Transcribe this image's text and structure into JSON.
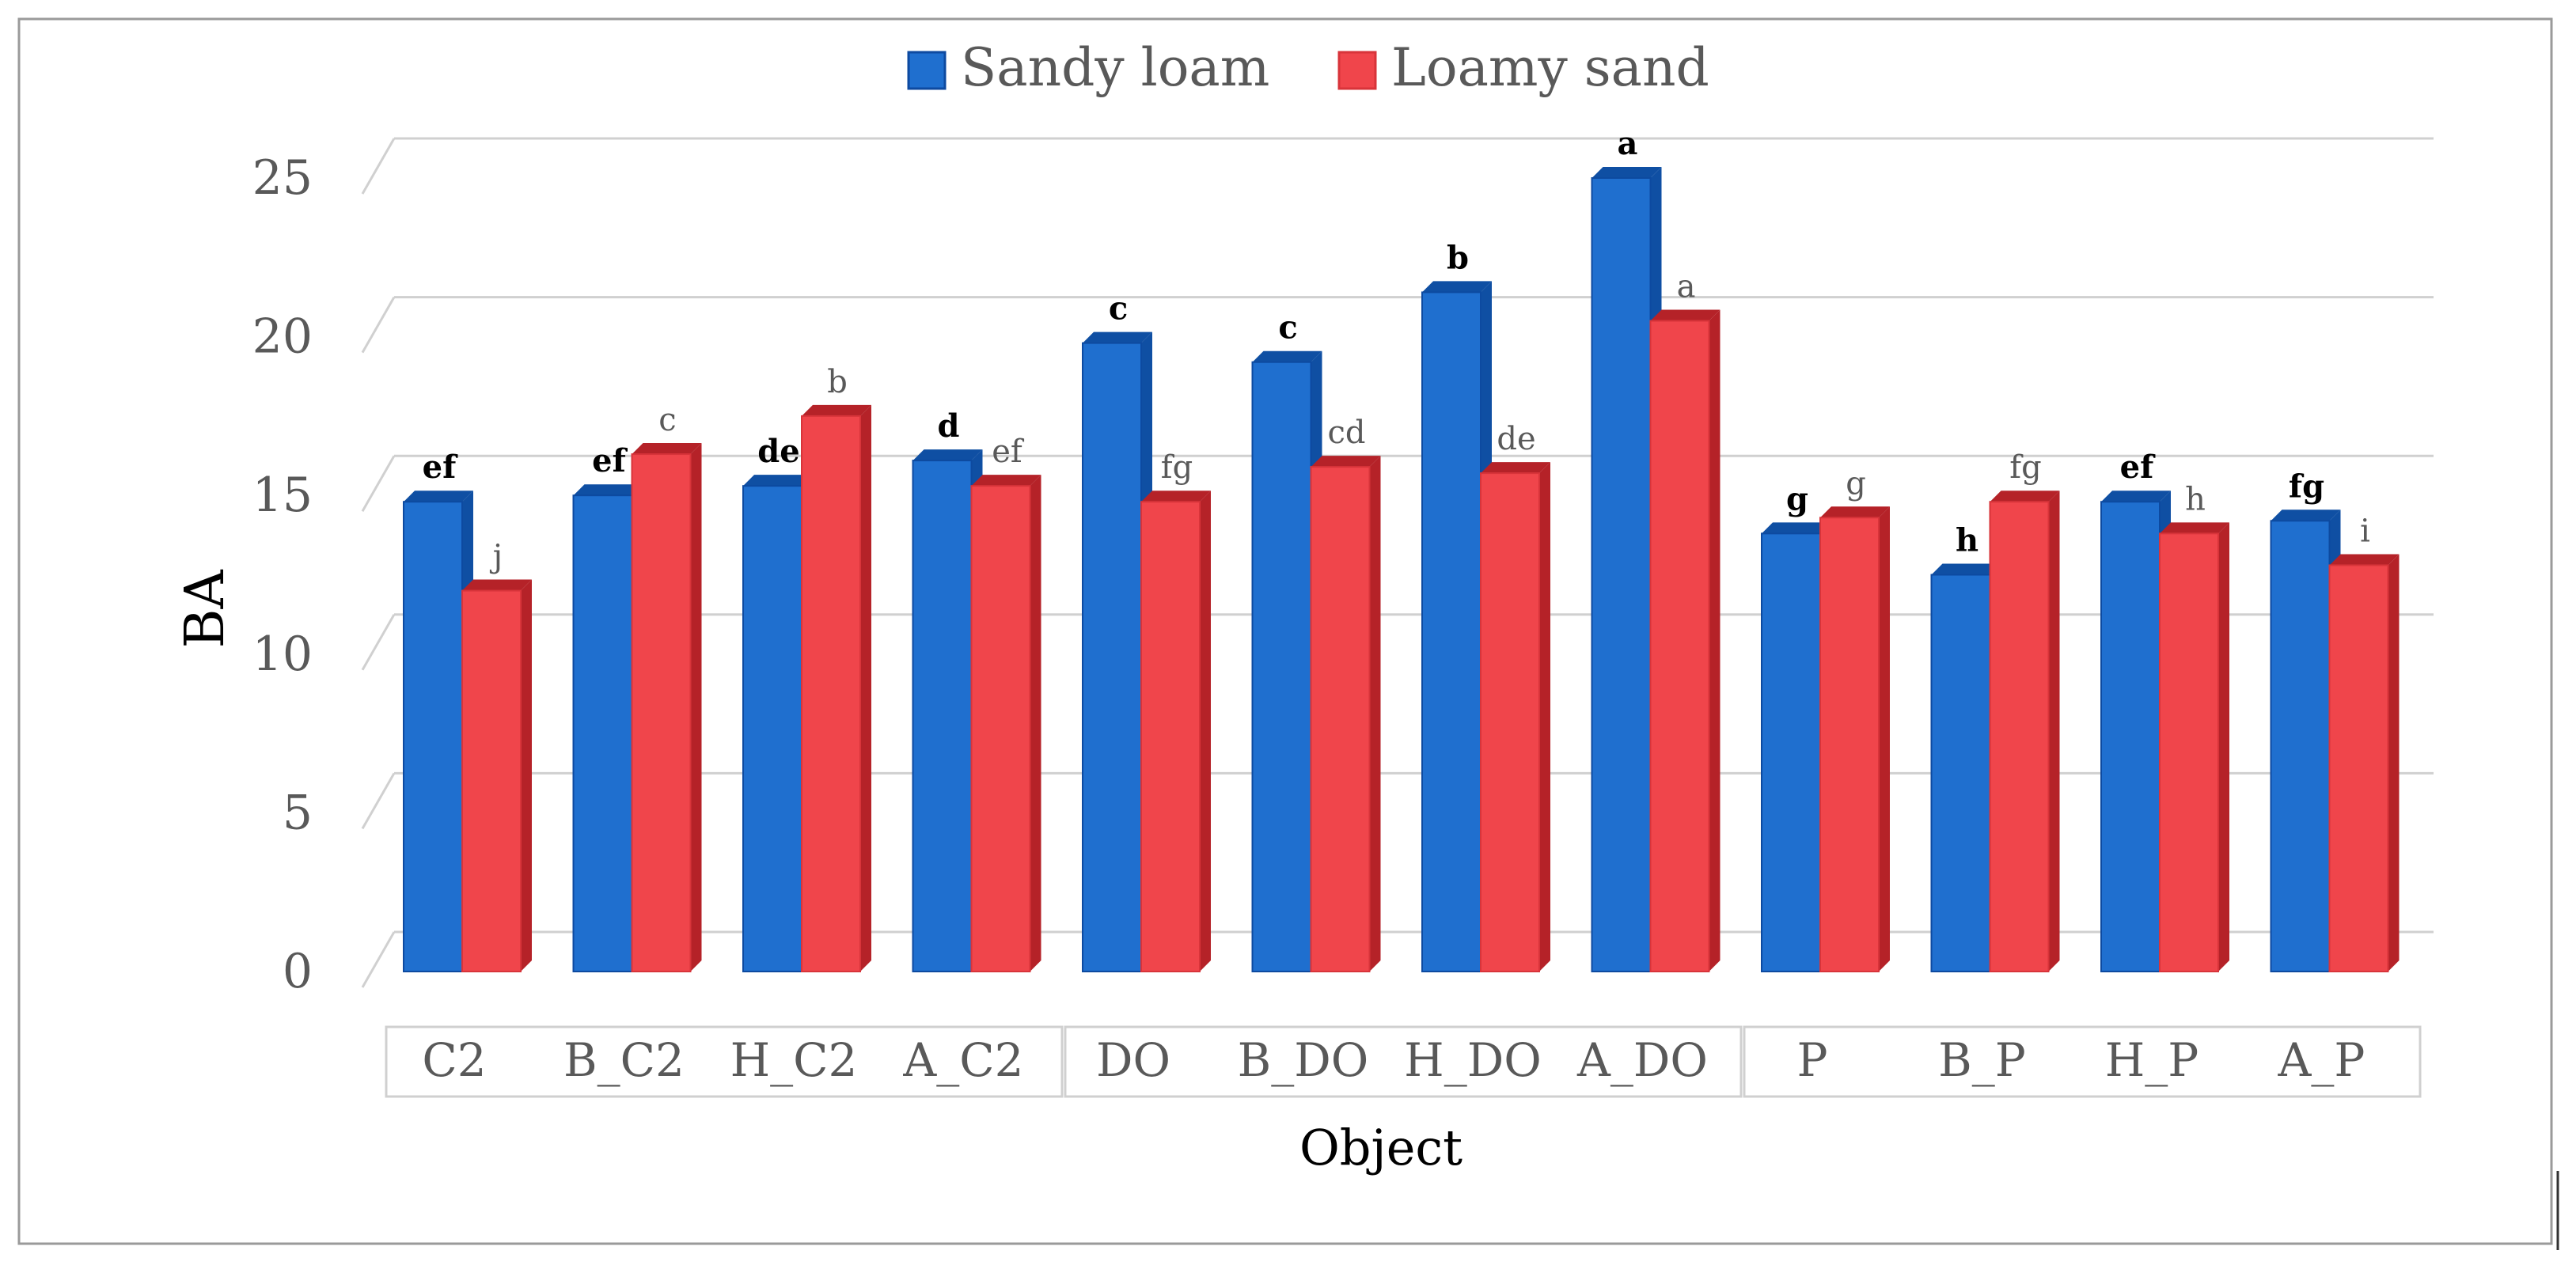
{
  "chart_data": {
    "type": "bar",
    "xlabel": "Object",
    "ylabel": "BA",
    "ylim": [
      0,
      25
    ],
    "yticks": [
      0,
      5,
      10,
      15,
      20,
      25
    ],
    "grid": true,
    "legend": "top-center",
    "groups": [
      {
        "categories": [
          "C2",
          "B_C2",
          "H_C2",
          "A_C2"
        ]
      },
      {
        "categories": [
          "DO",
          "B_DO",
          "H_DO",
          "A_DO"
        ]
      },
      {
        "categories": [
          "P",
          "B_P",
          "H_P",
          "A_P"
        ]
      }
    ],
    "categories": [
      "C2",
      "B_C2",
      "H_C2",
      "A_C2",
      "DO",
      "B_DO",
      "H_DO",
      "A_DO",
      "P",
      "B_P",
      "H_P",
      "A_P"
    ],
    "series": [
      {
        "name": "Sandy loam",
        "color": "#1f6fcf",
        "values": [
          14.8,
          15.0,
          15.3,
          16.1,
          19.8,
          19.2,
          21.4,
          25.0,
          13.8,
          12.5,
          14.8,
          14.2
        ],
        "labels": [
          "ef",
          "ef",
          "de",
          "d",
          "c",
          "c",
          "b",
          "a",
          "g",
          "h",
          "ef",
          "fg"
        ]
      },
      {
        "name": "Loamy sand",
        "color": "#f0454b",
        "values": [
          12.0,
          16.3,
          17.5,
          15.3,
          14.8,
          15.9,
          15.7,
          20.5,
          14.3,
          14.8,
          13.8,
          12.8
        ],
        "labels": [
          "j",
          "c",
          "b",
          "ef",
          "fg",
          "cd",
          "de",
          "a",
          "g",
          "fg",
          "h",
          "i"
        ]
      }
    ]
  }
}
